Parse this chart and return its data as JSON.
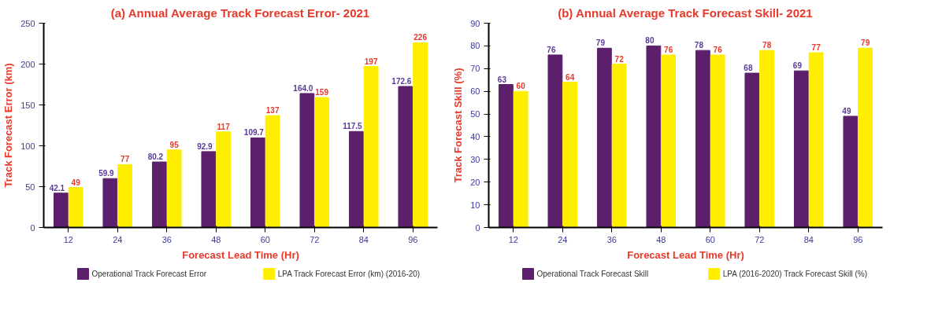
{
  "chart_data": [
    {
      "type": "bar",
      "title": "(a) Annual Average Track Forecast Error- 2021",
      "xlabel": "Forecast Lead Time (Hr)",
      "ylabel": "Track Forecast Error (km)",
      "categories": [
        "12",
        "24",
        "36",
        "48",
        "60",
        "72",
        "84",
        "96"
      ],
      "ylim": [
        0,
        250
      ],
      "yticks": [
        0,
        50,
        100,
        150,
        200,
        250
      ],
      "grid": false,
      "legend": "bottom",
      "series": [
        {
          "name": "Operational Track Forecast Error",
          "color": "#5c1f6b",
          "values": [
            42.1,
            59.9,
            80.2,
            92.9,
            109.7,
            164.0,
            117.5,
            172.6
          ],
          "value_labels": [
            "42.1",
            "59.9",
            "80.2",
            "92.9",
            "109.7",
            "164.0",
            "117.5",
            "172.6"
          ]
        },
        {
          "name": "LPA Track Forecast Error (km) (2016-20)",
          "color": "#ffee00",
          "values": [
            49,
            77,
            95,
            117,
            137,
            159,
            197,
            226
          ],
          "value_labels": [
            "49",
            "77",
            "95",
            "117",
            "137",
            "159",
            "197",
            "226"
          ]
        }
      ]
    },
    {
      "type": "bar",
      "title": "(b) Annual Average Track Forecast Skill- 2021",
      "xlabel": "Forecast Lead Time (Hr)",
      "ylabel": "Track Forecast Skill (%)",
      "categories": [
        "12",
        "24",
        "36",
        "48",
        "60",
        "72",
        "84",
        "96"
      ],
      "ylim": [
        0,
        90
      ],
      "yticks": [
        0,
        10,
        20,
        30,
        40,
        50,
        60,
        70,
        80,
        90
      ],
      "grid": false,
      "legend": "bottom",
      "series": [
        {
          "name": "Operational Track Forecast Skill",
          "color": "#5c1f6b",
          "values": [
            63,
            76,
            79,
            80,
            78,
            68,
            69,
            49
          ],
          "value_labels": [
            "63",
            "76",
            "79",
            "80",
            "78",
            "68",
            "69",
            "49"
          ]
        },
        {
          "name": "LPA (2016-2020) Track Forecast Skill (%)",
          "color": "#ffee00",
          "values": [
            60,
            64,
            72,
            76,
            76,
            78,
            77,
            79
          ],
          "value_labels": [
            "60",
            "64",
            "72",
            "76",
            "76",
            "78",
            "77",
            "79"
          ]
        }
      ]
    }
  ]
}
